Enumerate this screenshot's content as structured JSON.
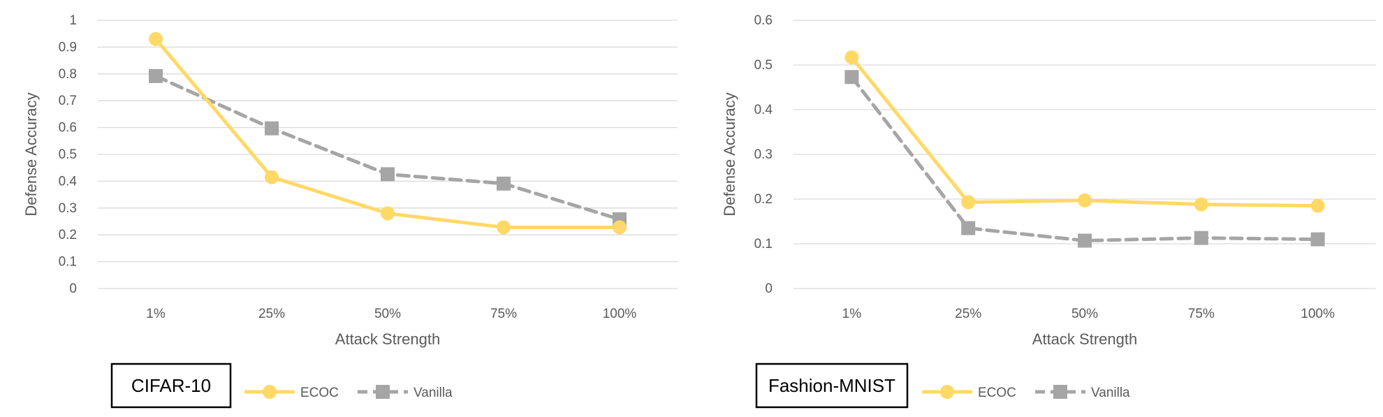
{
  "chart_data": [
    {
      "type": "line",
      "panel_label": "CIFAR-10",
      "xlabel": "Attack Strength",
      "ylabel": "Defense Accuracy",
      "categories": [
        "1%",
        "25%",
        "50%",
        "75%",
        "100%"
      ],
      "ylim": [
        0,
        1
      ],
      "yticks": [
        "0",
        "0.1",
        "0.2",
        "0.3",
        "0.4",
        "0.5",
        "0.6",
        "0.7",
        "0.8",
        "0.9",
        "1"
      ],
      "grid": true,
      "legend_position": "bottom",
      "series": [
        {
          "name": "ECOC",
          "values": [
            0.93,
            0.415,
            0.28,
            0.228,
            0.228
          ],
          "color": "#FFD966",
          "marker": "circle",
          "dash": "solid"
        },
        {
          "name": "Vanilla",
          "values": [
            0.792,
            0.597,
            0.426,
            0.391,
            0.258
          ],
          "color": "#A5A5A5",
          "marker": "square",
          "dash": "dashed"
        }
      ]
    },
    {
      "type": "line",
      "panel_label": "Fashion-MNIST",
      "xlabel": "Attack Strength",
      "ylabel": "Defense Accuracy",
      "categories": [
        "1%",
        "25%",
        "50%",
        "75%",
        "100%"
      ],
      "ylim": [
        0,
        0.6
      ],
      "yticks": [
        "0",
        "0.1",
        "0.2",
        "0.3",
        "0.4",
        "0.5",
        "0.6"
      ],
      "grid": true,
      "legend_position": "bottom",
      "series": [
        {
          "name": "ECOC",
          "values": [
            0.517,
            0.193,
            0.197,
            0.188,
            0.185
          ],
          "color": "#FFD966",
          "marker": "circle",
          "dash": "solid"
        },
        {
          "name": "Vanilla",
          "values": [
            0.473,
            0.135,
            0.107,
            0.113,
            0.11
          ],
          "color": "#A5A5A5",
          "marker": "square",
          "dash": "dashed"
        }
      ]
    }
  ]
}
